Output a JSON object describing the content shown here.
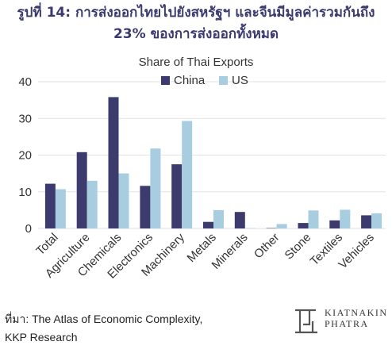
{
  "figure": {
    "title_line1": "รูปที่ 14: การส่งออกไทยไปยังสหรัฐฯ และจีนมีมูลค่ารวมกันถึง",
    "title_line2": "23% ของการส่งออกทั้งหมด"
  },
  "source": {
    "line1": "ที่มา: The Atlas of Economic Complexity,",
    "line2": "KKP Research"
  },
  "logo": {
    "line1": "KIATNAKIN",
    "line2": "PHATRA"
  },
  "colors": {
    "china": "#3d3b6e",
    "us": "#a9cde0",
    "title": "#3b3a6e",
    "grid": "#e2e2e2"
  },
  "chart_data": {
    "type": "bar",
    "title": "Share of Thai Exports",
    "xlabel": "",
    "ylabel": "",
    "ylim": [
      0,
      40
    ],
    "yticks": [
      0,
      10,
      20,
      30,
      40
    ],
    "grid": true,
    "legend_position": "top",
    "categories": [
      "Total",
      "Agriculture",
      "Chemicals",
      "Electronics",
      "Machinery",
      "Metals",
      "Minerals",
      "Other",
      "Stone",
      "Textiles",
      "Vehicles"
    ],
    "series": [
      {
        "name": "China",
        "values": [
          12.2,
          20.8,
          35.8,
          11.6,
          17.5,
          1.8,
          4.5,
          0.1,
          1.5,
          2.2,
          3.6
        ]
      },
      {
        "name": "US",
        "values": [
          10.7,
          13.0,
          15.0,
          21.8,
          29.3,
          5.0,
          0.1,
          1.2,
          4.9,
          5.1,
          4.1
        ]
      }
    ]
  }
}
